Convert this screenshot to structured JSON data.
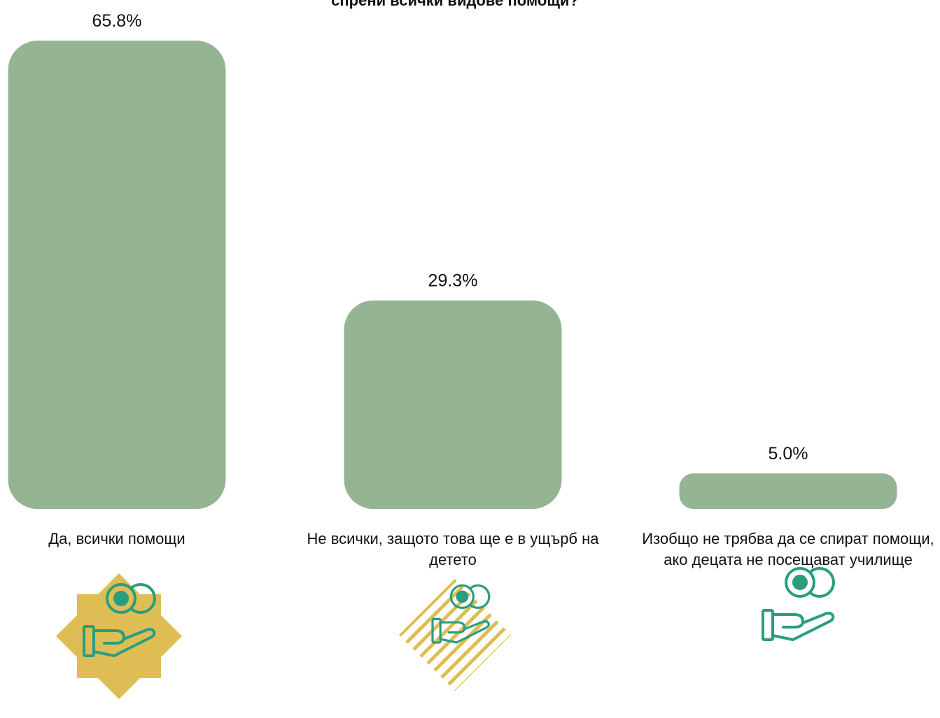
{
  "chart_data": {
    "type": "bar",
    "title": "спрени всички видове помощи?",
    "categories": [
      "Да, всички помощи",
      "Не всички, защото това ще е в ущърб на детето",
      "Изобщо не трябва да се спират помощи, ако децата не посещават училище"
    ],
    "values": [
      65.8,
      29.3,
      5.0
    ],
    "value_labels": [
      "65.8%",
      "29.3%",
      "5.0%"
    ],
    "color": "#95b494"
  }
}
